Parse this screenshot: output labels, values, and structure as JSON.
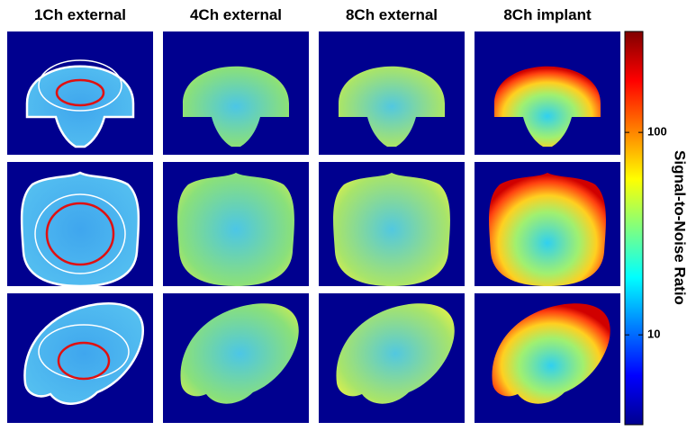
{
  "columns": [
    "1Ch external",
    "4Ch external",
    "8Ch external",
    "8Ch implant"
  ],
  "colorbar": {
    "label": "Signal-to-Noise Ratio",
    "log": true,
    "lim": [
      3.6,
      315
    ],
    "ticks": [
      10,
      100
    ]
  }
}
